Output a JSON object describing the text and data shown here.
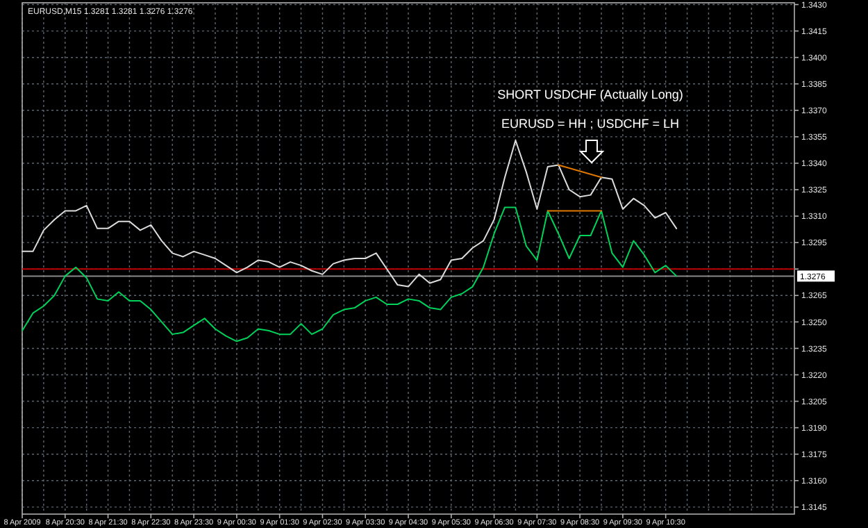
{
  "chart_data": {
    "type": "line",
    "title": "EURUSD,M15 1.3281 1.3281 1.3276 1.3276",
    "annotations": [
      "SHORT USDCHF (Actually Long)",
      "EURUSD = HH ; USDCHF = LH"
    ],
    "x": [
      "2009-04-08T19:30",
      "2009-04-08T19:45",
      "2009-04-08T20:00",
      "2009-04-08T20:15",
      "2009-04-08T20:30",
      "2009-04-08T20:45",
      "2009-04-08T21:00",
      "2009-04-08T21:15",
      "2009-04-08T21:30",
      "2009-04-08T21:45",
      "2009-04-08T22:00",
      "2009-04-08T22:15",
      "2009-04-08T22:30",
      "2009-04-08T22:45",
      "2009-04-08T23:00",
      "2009-04-08T23:15",
      "2009-04-08T23:30",
      "2009-04-08T23:45",
      "2009-04-09T00:00",
      "2009-04-09T00:15",
      "2009-04-09T00:30",
      "2009-04-09T00:45",
      "2009-04-09T01:00",
      "2009-04-09T01:15",
      "2009-04-09T01:30",
      "2009-04-09T01:45",
      "2009-04-09T02:00",
      "2009-04-09T02:15",
      "2009-04-09T02:30",
      "2009-04-09T02:45",
      "2009-04-09T03:00",
      "2009-04-09T03:15",
      "2009-04-09T03:30",
      "2009-04-09T03:45",
      "2009-04-09T04:00",
      "2009-04-09T04:15",
      "2009-04-09T04:30",
      "2009-04-09T04:45",
      "2009-04-09T05:00",
      "2009-04-09T05:15",
      "2009-04-09T05:30",
      "2009-04-09T05:45",
      "2009-04-09T06:00",
      "2009-04-09T06:15",
      "2009-04-09T06:30",
      "2009-04-09T06:45",
      "2009-04-09T07:00",
      "2009-04-09T07:15",
      "2009-04-09T07:30",
      "2009-04-09T07:45",
      "2009-04-09T08:00",
      "2009-04-09T08:15",
      "2009-04-09T08:30",
      "2009-04-09T08:45",
      "2009-04-09T09:00",
      "2009-04-09T09:15",
      "2009-04-09T09:30",
      "2009-04-09T09:45",
      "2009-04-09T10:00",
      "2009-04-09T10:15",
      "2009-04-09T10:30",
      "2009-04-09T10:45"
    ],
    "series": [
      {
        "color": "#dcdcdc",
        "values": [
          1.329,
          1.329,
          1.3302,
          1.3308,
          1.3313,
          1.3313,
          1.3316,
          1.3303,
          1.3303,
          1.3307,
          1.3307,
          1.3302,
          1.3305,
          1.3296,
          1.3289,
          1.3287,
          1.329,
          1.3288,
          1.3286,
          1.3282,
          1.3278,
          1.3281,
          1.3285,
          1.3284,
          1.3281,
          1.3284,
          1.3282,
          1.3279,
          1.3277,
          1.3283,
          1.3285,
          1.3286,
          1.3286,
          1.3289,
          1.328,
          1.3271,
          1.327,
          1.3277,
          1.3272,
          1.3274,
          1.3285,
          1.3286,
          1.3292,
          1.3296,
          1.3308,
          1.3332,
          1.3353,
          1.3335,
          1.3314,
          1.3338,
          1.3339,
          1.3325,
          1.3321,
          1.3322,
          1.3332,
          1.3331,
          1.3314,
          1.332,
          1.3316,
          1.3309,
          1.3312,
          1.3303
        ]
      },
      {
        "color": "#00d35a",
        "values": [
          1.3245,
          1.3255,
          1.3259,
          1.3265,
          1.3276,
          1.3281,
          1.3275,
          1.3263,
          1.3262,
          1.3267,
          1.3262,
          1.3262,
          1.3257,
          1.325,
          1.3243,
          1.3244,
          1.3248,
          1.3252,
          1.3246,
          1.3242,
          1.3239,
          1.3241,
          1.3246,
          1.3245,
          1.3243,
          1.3243,
          1.3249,
          1.3243,
          1.3246,
          1.3254,
          1.3257,
          1.3258,
          1.3262,
          1.3264,
          1.326,
          1.326,
          1.3263,
          1.3262,
          1.3258,
          1.3257,
          1.3264,
          1.3266,
          1.327,
          1.3281,
          1.33,
          1.3315,
          1.3315,
          1.3293,
          1.3285,
          1.3313,
          1.33,
          1.3286,
          1.3299,
          1.3299,
          1.3313,
          1.3289,
          1.3281,
          1.3296,
          1.3288,
          1.3278,
          1.3282,
          1.3276
        ]
      },
      {
        "type": "line",
        "color": "#e07800",
        "x": [
          "2009-04-09T08:00",
          "2009-04-09T09:00"
        ],
        "values": [
          1.3339,
          1.3332
        ]
      },
      {
        "type": "line",
        "color": "#e07800",
        "x": [
          "2009-04-09T07:45",
          "2009-04-09T09:00"
        ],
        "values": [
          1.3313,
          1.3313
        ]
      }
    ],
    "xlim": [
      "2009-04-08T19:30",
      "2009-04-09T13:30"
    ],
    "xticks": [
      {
        "value": "2009-04-08T19:30",
        "label": "8 Apr 2009"
      },
      {
        "value": "2009-04-08T20:00",
        "label": null
      },
      {
        "value": "2009-04-08T20:30",
        "label": "8 Apr 20:30"
      },
      {
        "value": "2009-04-08T21:00",
        "label": null
      },
      {
        "value": "2009-04-08T21:30",
        "label": "8 Apr 21:30"
      },
      {
        "value": "2009-04-08T22:00",
        "label": null
      },
      {
        "value": "2009-04-08T22:30",
        "label": "8 Apr 22:30"
      },
      {
        "value": "2009-04-08T23:00",
        "label": null
      },
      {
        "value": "2009-04-08T23:30",
        "label": "8 Apr 23:30"
      },
      {
        "value": "2009-04-09T00:00",
        "label": null
      },
      {
        "value": "2009-04-09T00:30",
        "label": "9 Apr 00:30"
      },
      {
        "value": "2009-04-09T01:00",
        "label": null
      },
      {
        "value": "2009-04-09T01:30",
        "label": "9 Apr 01:30"
      },
      {
        "value": "2009-04-09T02:00",
        "label": null
      },
      {
        "value": "2009-04-09T02:30",
        "label": "9 Apr 02:30"
      },
      {
        "value": "2009-04-09T03:00",
        "label": null
      },
      {
        "value": "2009-04-09T03:30",
        "label": "9 Apr 03:30"
      },
      {
        "value": "2009-04-09T04:00",
        "label": null
      },
      {
        "value": "2009-04-09T04:30",
        "label": "9 Apr 04:30"
      },
      {
        "value": "2009-04-09T05:00",
        "label": null
      },
      {
        "value": "2009-04-09T05:30",
        "label": "9 Apr 05:30"
      },
      {
        "value": "2009-04-09T06:00",
        "label": null
      },
      {
        "value": "2009-04-09T06:30",
        "label": "9 Apr 06:30"
      },
      {
        "value": "2009-04-09T07:00",
        "label": null
      },
      {
        "value": "2009-04-09T07:30",
        "label": "9 Apr 07:30"
      },
      {
        "value": "2009-04-09T08:00",
        "label": null
      },
      {
        "value": "2009-04-09T08:30",
        "label": "9 Apr 08:30"
      },
      {
        "value": "2009-04-09T09:00",
        "label": null
      },
      {
        "value": "2009-04-09T09:30",
        "label": "9 Apr 09:30"
      },
      {
        "value": "2009-04-09T10:00",
        "label": null
      },
      {
        "value": "2009-04-09T10:30",
        "label": "9 Apr 10:30"
      },
      {
        "value": "2009-04-09T11:00",
        "label": null
      },
      {
        "value": "2009-04-09T11:30",
        "label": null
      },
      {
        "value": "2009-04-09T12:00",
        "label": null
      },
      {
        "value": "2009-04-09T12:30",
        "label": null
      },
      {
        "value": "2009-04-09T13:00",
        "label": null
      }
    ],
    "ylim": [
      1.3141,
      1.3431
    ],
    "yticks": [
      {
        "value": 1.343,
        "label": "1.3430"
      },
      1.3415,
      {
        "value": 1.34,
        "label": "1.3400"
      },
      1.3385,
      {
        "value": 1.337,
        "label": "1.3370"
      },
      1.3355,
      {
        "value": 1.334,
        "label": "1.3340"
      },
      1.3325,
      {
        "value": 1.331,
        "label": "1.3310"
      },
      1.3295,
      {
        "value": 1.328,
        "label": null
      },
      1.3265,
      {
        "value": 1.325,
        "label": "1.3250"
      },
      1.3235,
      {
        "value": 1.322,
        "label": "1.3220"
      },
      1.3205,
      {
        "value": 1.319,
        "label": "1.3190"
      },
      1.3175,
      {
        "value": 1.316,
        "label": "1.3160"
      },
      1.3145
    ],
    "grid": true,
    "ref_lines": [
      {
        "axis": "y",
        "value": 1.328,
        "color": "#c00000"
      },
      {
        "axis": "y",
        "value": 1.3276,
        "label": "1.3276",
        "color": "#8a8a8a"
      }
    ]
  }
}
